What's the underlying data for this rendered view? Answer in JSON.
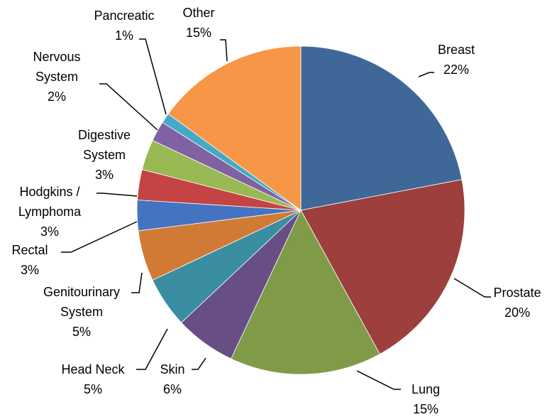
{
  "chart_data": {
    "type": "pie",
    "categories": [
      "Breast",
      "Prostate",
      "Lung",
      "Skin",
      "Head Neck",
      "Genitourinary System",
      "Rectal",
      "Hodgkins / Lymphoma",
      "Digestive System",
      "Nervous System",
      "Pancreatic",
      "Other"
    ],
    "values": [
      22,
      20,
      15,
      6,
      5,
      5,
      3,
      3,
      3,
      2,
      1,
      15
    ],
    "value_labels": [
      "22%",
      "20%",
      "15%",
      "6%",
      "5%",
      "5%",
      "3%",
      "3%",
      "3%",
      "2%",
      "1%",
      "15%"
    ],
    "colors": [
      "#3f6899",
      "#9c3f3d",
      "#7f9b48",
      "#674f86",
      "#3b8da2",
      "#d17a36",
      "#4473c1",
      "#c44444",
      "#98b953",
      "#7f62a1",
      "#45a9c6",
      "#f79646"
    ]
  }
}
